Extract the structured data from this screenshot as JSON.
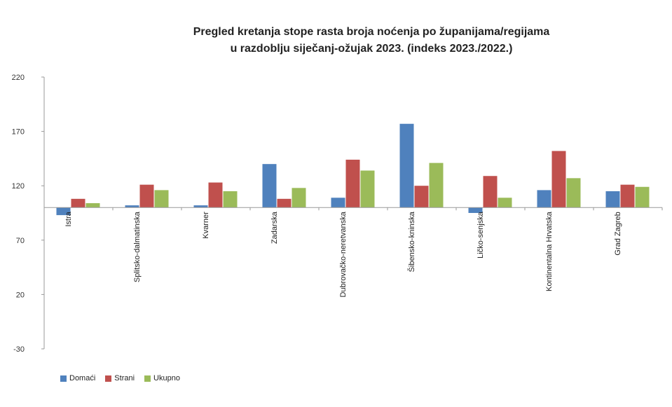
{
  "chart_data": {
    "type": "bar",
    "title_line1": "Pregled kretanja stope rasta broja noćenja po županijama/regijama",
    "title_line2": "u razdoblju siječanj-ožujak 2023. (indeks 2023./2022.)",
    "categories": [
      "Istra",
      "Splitsko-dalmatinska",
      "Kvarner",
      "Zadarska",
      "Dubrovačko-neretvanska",
      "Šibensko-kninska",
      "Ličko-senjska",
      "Kontinentalna Hrvatska",
      "Grad Zagreb"
    ],
    "series": [
      {
        "name": "Domaći",
        "color": "#4f81bd",
        "values": [
          93,
          102,
          102,
          140,
          109,
          177,
          95,
          116,
          115
        ]
      },
      {
        "name": "Strani",
        "color": "#c0504d",
        "values": [
          108,
          121,
          123,
          108,
          144,
          120,
          129,
          152,
          121
        ]
      },
      {
        "name": "Ukupno",
        "color": "#9bbb59",
        "values": [
          104,
          116,
          115,
          118,
          134,
          141,
          109,
          127,
          119
        ]
      }
    ],
    "baseline": 100,
    "ylim": [
      -30,
      220
    ],
    "yticks": [
      "220",
      "170",
      "120",
      "70",
      "20",
      "-30"
    ],
    "xlabel": "",
    "ylabel": "",
    "legend_position": "bottom-left",
    "grid": false
  }
}
